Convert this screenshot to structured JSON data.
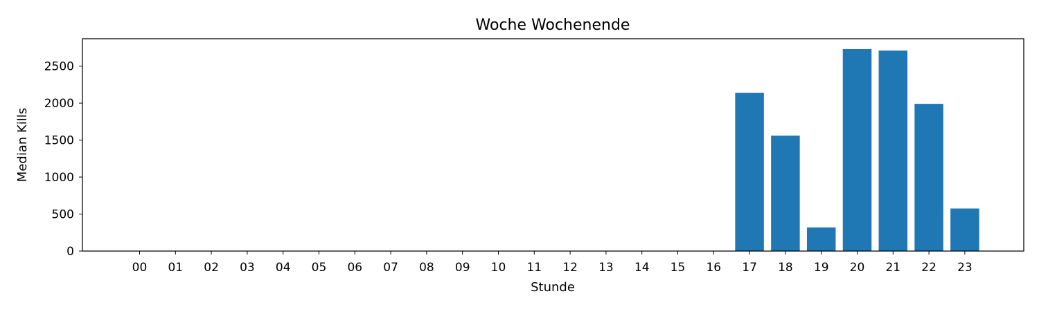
{
  "chart_data": {
    "type": "bar",
    "title": "Woche Wochenende",
    "xlabel": "Stunde",
    "ylabel": "Median Kills",
    "categories": [
      "00",
      "01",
      "02",
      "03",
      "04",
      "05",
      "06",
      "07",
      "08",
      "09",
      "10",
      "11",
      "12",
      "13",
      "14",
      "15",
      "16",
      "17",
      "18",
      "19",
      "20",
      "21",
      "22",
      "23"
    ],
    "values": [
      0,
      0,
      0,
      0,
      0,
      0,
      0,
      0,
      0,
      0,
      0,
      0,
      0,
      0,
      0,
      0,
      0,
      2140,
      1560,
      320,
      2730,
      2710,
      1990,
      575
    ],
    "ylim": [
      0,
      2870
    ],
    "yticks": [
      0,
      500,
      1000,
      1500,
      2000,
      2500
    ],
    "grid": false,
    "bar_color": "#1f77b4"
  }
}
